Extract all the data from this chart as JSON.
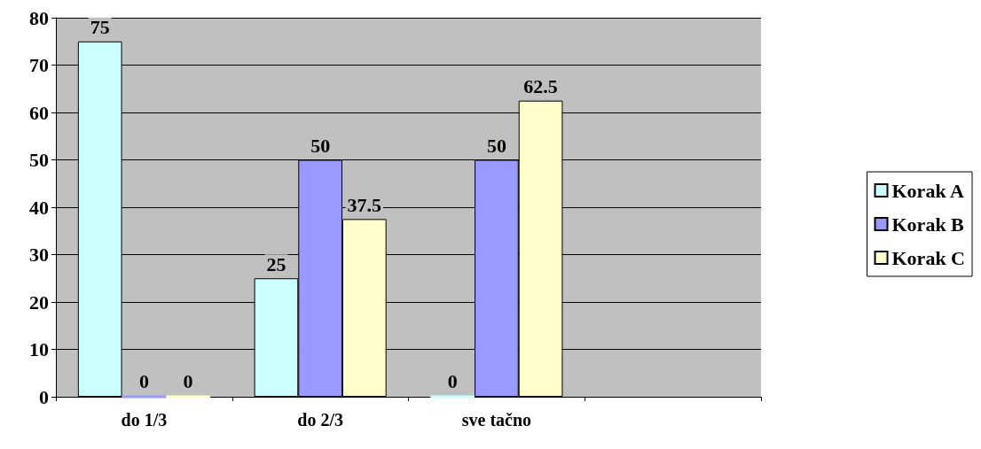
{
  "chart_data": {
    "type": "bar",
    "categories": [
      "do 1/3",
      "do 2/3",
      "sve tačno",
      null
    ],
    "series": [
      {
        "name": "Korak A",
        "color": "#ccffff",
        "values": [
          75,
          25,
          0,
          null
        ]
      },
      {
        "name": "Korak B",
        "color": "#9999ff",
        "values": [
          0,
          50,
          50,
          null
        ]
      },
      {
        "name": "Korak C",
        "color": "#ffffcc",
        "values": [
          0,
          37.5,
          62.5,
          null
        ]
      }
    ],
    "ylim": [
      0,
      80
    ],
    "yticks": [
      0,
      10,
      20,
      30,
      40,
      50,
      60,
      70,
      80
    ],
    "grid": "y",
    "legend": "right",
    "data_labels": true
  }
}
